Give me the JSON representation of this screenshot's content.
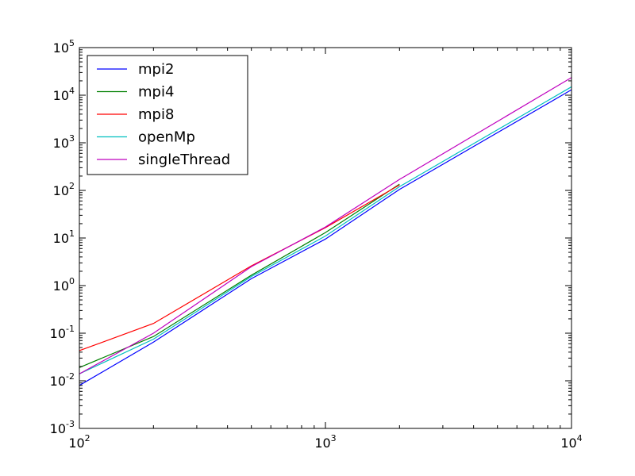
{
  "chart_data": {
    "type": "line",
    "title": "",
    "xlabel": "",
    "ylabel": "",
    "xscale": "log",
    "yscale": "log",
    "xlim": [
      100,
      10000
    ],
    "ylim": [
      0.001,
      100000
    ],
    "grid": false,
    "legend_position": "top-left",
    "x_ticks": [
      {
        "value": 100,
        "base": "10",
        "exp": "2"
      },
      {
        "value": 1000,
        "base": "10",
        "exp": "3"
      },
      {
        "value": 10000,
        "base": "10",
        "exp": "4"
      }
    ],
    "y_ticks": [
      {
        "value": 0.001,
        "base": "10",
        "exp": "-3"
      },
      {
        "value": 0.01,
        "base": "10",
        "exp": "-2"
      },
      {
        "value": 0.1,
        "base": "10",
        "exp": "-1"
      },
      {
        "value": 1,
        "base": "10",
        "exp": "0"
      },
      {
        "value": 10,
        "base": "10",
        "exp": "1"
      },
      {
        "value": 100,
        "base": "10",
        "exp": "2"
      },
      {
        "value": 1000,
        "base": "10",
        "exp": "3"
      },
      {
        "value": 10000,
        "base": "10",
        "exp": "4"
      },
      {
        "value": 100000,
        "base": "10",
        "exp": "5"
      }
    ],
    "series": [
      {
        "name": "mpi2",
        "color": "#0000ff",
        "x": [
          100,
          200,
          500,
          1000,
          2000,
          10000
        ],
        "y": [
          0.008,
          0.065,
          1.4,
          9.5,
          105,
          13000
        ]
      },
      {
        "name": "mpi4",
        "color": "#008000",
        "x": [
          100,
          200,
          500,
          1000,
          2000
        ],
        "y": [
          0.019,
          0.085,
          1.65,
          13,
          135
        ]
      },
      {
        "name": "mpi8",
        "color": "#ff0000",
        "x": [
          100,
          200,
          500,
          1000,
          2000
        ],
        "y": [
          0.043,
          0.16,
          2.6,
          16.5,
          130
        ]
      },
      {
        "name": "openMp",
        "color": "#00bfbf",
        "x": [
          100,
          200,
          500,
          1000,
          2000,
          10000
        ],
        "y": [
          0.014,
          0.075,
          1.55,
          11,
          120,
          15000
        ]
      },
      {
        "name": "singleThread",
        "color": "#bf00bf",
        "x": [
          100,
          200,
          500,
          1000,
          2000,
          10000
        ],
        "y": [
          0.014,
          0.1,
          2.5,
          17,
          170,
          23500
        ]
      }
    ]
  }
}
